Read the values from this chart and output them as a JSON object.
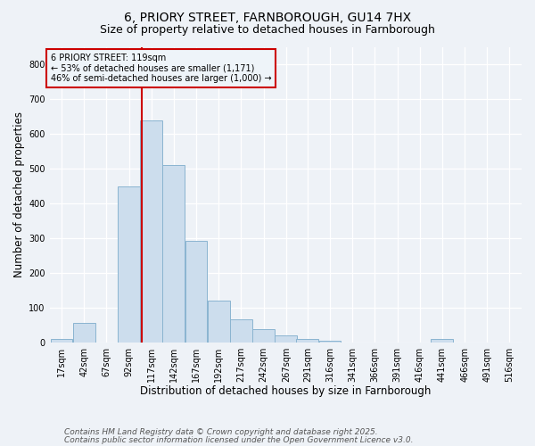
{
  "title_line1": "6, PRIORY STREET, FARNBOROUGH, GU14 7HX",
  "title_line2": "Size of property relative to detached houses in Farnborough",
  "xlabel": "Distribution of detached houses by size in Farnborough",
  "ylabel": "Number of detached properties",
  "bar_color": "#ccdded",
  "bar_edge_color": "#8ab4d0",
  "vline_color": "#cc0000",
  "vline_x": 119,
  "annotation_text": "6 PRIORY STREET: 119sqm\n← 53% of detached houses are smaller (1,171)\n46% of semi-detached houses are larger (1,000) →",
  "annotation_box_facecolor": "#eef4f9",
  "annotation_box_edgecolor": "#cc0000",
  "annotation_text_color": "#000000",
  "footnote1": "Contains HM Land Registry data © Crown copyright and database right 2025.",
  "footnote2": "Contains public sector information licensed under the Open Government Licence v3.0.",
  "categories": [
    "17sqm",
    "42sqm",
    "67sqm",
    "92sqm",
    "117sqm",
    "142sqm",
    "167sqm",
    "192sqm",
    "217sqm",
    "242sqm",
    "267sqm",
    "291sqm",
    "316sqm",
    "341sqm",
    "366sqm",
    "391sqm",
    "416sqm",
    "441sqm",
    "466sqm",
    "491sqm",
    "516sqm"
  ],
  "bin_starts": [
    17,
    42,
    67,
    92,
    117,
    142,
    167,
    192,
    217,
    242,
    267,
    291,
    316,
    341,
    366,
    391,
    416,
    441,
    466,
    491,
    516
  ],
  "values": [
    10,
    55,
    0,
    447,
    638,
    511,
    292,
    120,
    65,
    37,
    20,
    10,
    5,
    0,
    0,
    0,
    0,
    10,
    0,
    0,
    0
  ],
  "bin_width": 25,
  "ylim": [
    0,
    850
  ],
  "yticks": [
    0,
    100,
    200,
    300,
    400,
    500,
    600,
    700,
    800
  ],
  "bg_color": "#eef2f7",
  "grid_color": "#ffffff",
  "title_fontsize": 10,
  "subtitle_fontsize": 9,
  "axis_label_fontsize": 8.5,
  "tick_fontsize": 7,
  "footnote_fontsize": 6.5,
  "footnote_color": "#555555"
}
